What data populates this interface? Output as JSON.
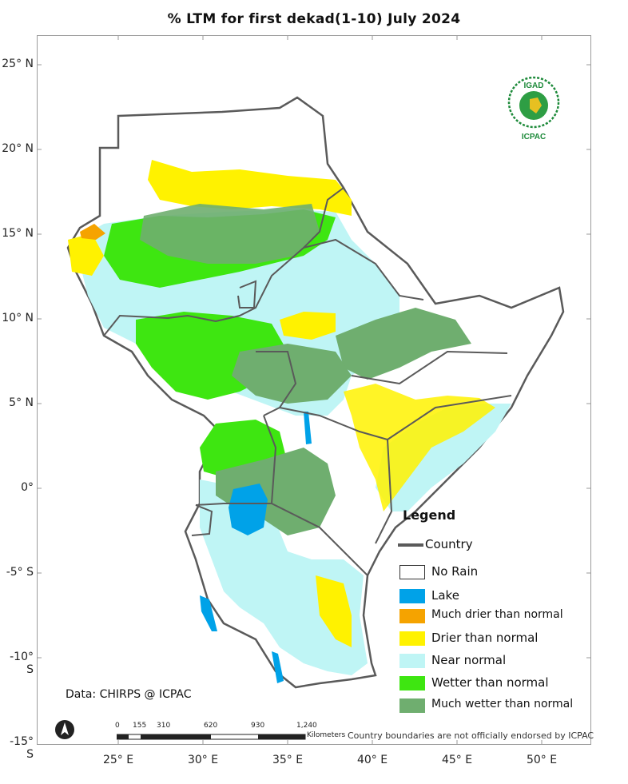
{
  "title": "% LTM  for first dekad(1-10) July 2024",
  "latitude_labels": [
    "25° N",
    "20° N",
    "15° N",
    "10° N",
    "5° N",
    "0°",
    "-5° S",
    "-10° S",
    "-15° S"
  ],
  "longitude_labels": [
    "25° E",
    "30° E",
    "35° E",
    "40° E",
    "45° E",
    "50° E"
  ],
  "legend": {
    "title": "Legend",
    "country_label": "Country",
    "items": [
      {
        "label": "No Rain",
        "color": "#ffffff"
      },
      {
        "label": "Lake",
        "color": "#00a2e8"
      },
      {
        "label": "Much drier than normal",
        "color": "#f5a300"
      },
      {
        "label": "Drier than normal",
        "color": "#fff200"
      },
      {
        "label": "Near normal",
        "color": "#bff5f5"
      },
      {
        "label": "Wetter than normal",
        "color": "#3ee611"
      },
      {
        "label": "Much wetter than normal",
        "color": "#6fae6f"
      }
    ]
  },
  "data_credit": "Data: CHIRPS @ ICPAC",
  "scalebar": {
    "ticks": [
      "0",
      "155",
      "310",
      "620",
      "930",
      "1,240"
    ],
    "unit": "Kilometers"
  },
  "disclaimer": "Country boundaries are not officially endorsed by ICPAC",
  "logo": {
    "top_text": "IGAD",
    "bottom_text": "ICPAC"
  },
  "icons": [
    "north-arrow-icon",
    "igad-icpac-logo"
  ]
}
